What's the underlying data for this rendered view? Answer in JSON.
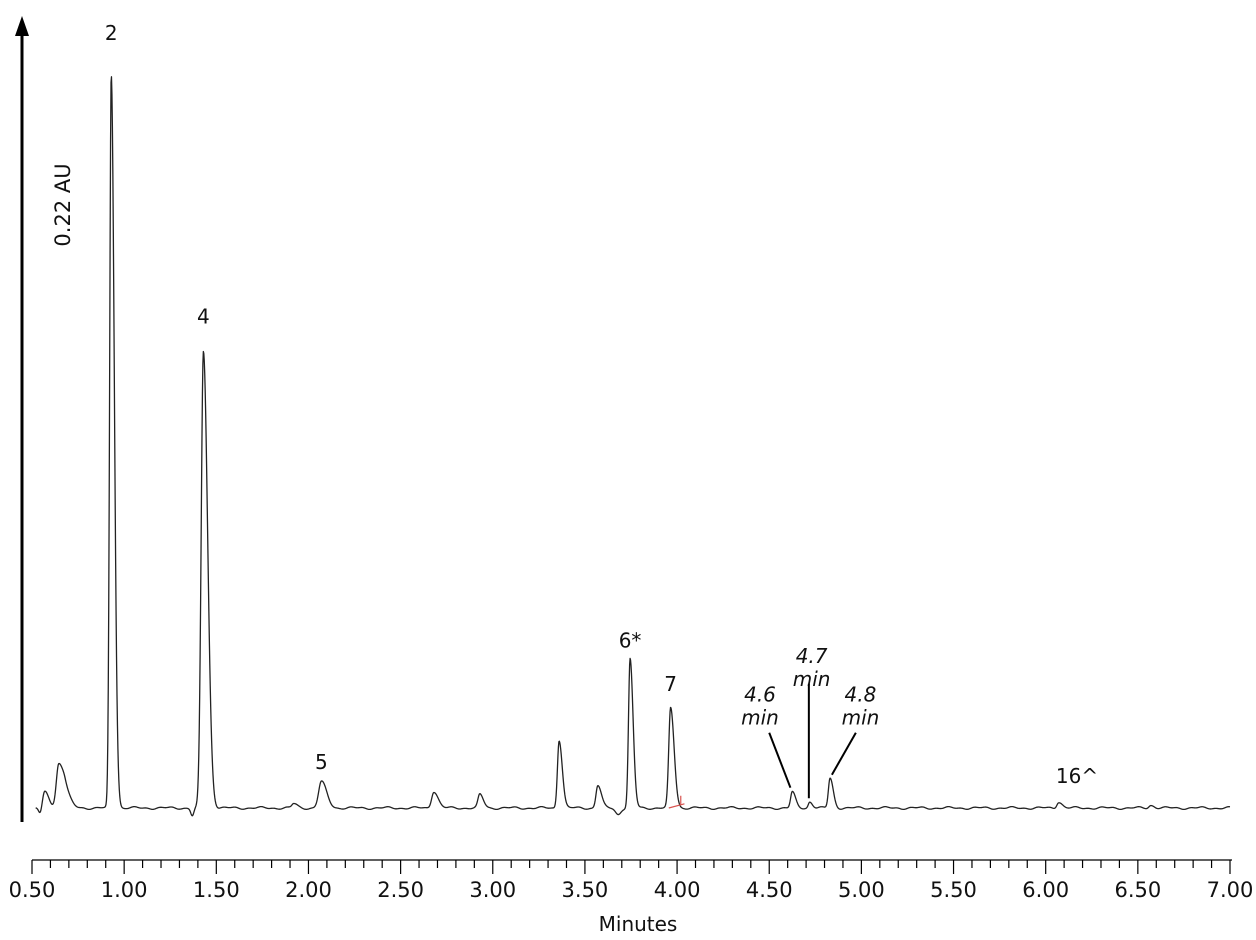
{
  "chart_data": {
    "type": "line",
    "title": "",
    "xlabel": "Minutes",
    "ylabel": "0.22 AU",
    "xlim": [
      0.5,
      7.0
    ],
    "ylim": [
      0.0,
      0.22
    ],
    "x_ticks": [
      0.5,
      1.0,
      1.5,
      2.0,
      2.5,
      3.0,
      3.5,
      4.0,
      4.5,
      5.0,
      5.5,
      6.0,
      6.5,
      7.0
    ],
    "x_tick_labels": [
      "0.50",
      "1.00",
      "1.50",
      "2.00",
      "2.50",
      "3.00",
      "3.50",
      "4.00",
      "4.50",
      "5.00",
      "5.50",
      "6.00",
      "6.50",
      "7.00"
    ],
    "grid": false,
    "legend": "none",
    "line_color": "#222222",
    "axis_color": "#000000",
    "integration_color": "#d9534f",
    "baseline": 0.0,
    "series": [
      {
        "peaks": [
          {
            "rt": 0.57,
            "height": 0.0045,
            "width": 0.012
          },
          {
            "rt": 0.645,
            "height": 0.0125,
            "width": 0.013
          },
          {
            "rt": 0.68,
            "height": 0.004,
            "width": 0.015
          },
          {
            "rt": 0.93,
            "height": 0.2095,
            "width": 0.0085
          },
          {
            "rt": 1.43,
            "height": 0.1305,
            "width": 0.012
          },
          {
            "rt": 1.92,
            "height": 0.0012,
            "width": 0.01
          },
          {
            "rt": 2.07,
            "height": 0.0075,
            "width": 0.015
          },
          {
            "rt": 2.68,
            "height": 0.0048,
            "width": 0.012
          },
          {
            "rt": 2.93,
            "height": 0.0038,
            "width": 0.01
          },
          {
            "rt": 3.36,
            "height": 0.0195,
            "width": 0.009
          },
          {
            "rt": 3.57,
            "height": 0.0065,
            "width": 0.01
          },
          {
            "rt": 3.745,
            "height": 0.0425,
            "width": 0.0085
          },
          {
            "rt": 3.965,
            "height": 0.0285,
            "width": 0.01
          },
          {
            "rt": 4.625,
            "height": 0.0045,
            "width": 0.009
          },
          {
            "rt": 4.72,
            "height": 0.0018,
            "width": 0.008
          },
          {
            "rt": 4.83,
            "height": 0.0085,
            "width": 0.009
          },
          {
            "rt": 6.07,
            "height": 0.0018,
            "width": 0.01
          },
          {
            "rt": 6.57,
            "height": 0.0008,
            "width": 0.01
          }
        ]
      }
    ],
    "annotations": [
      {
        "text": "2",
        "x": 0.93,
        "y": 0.2195,
        "style": "normal"
      },
      {
        "text": "4",
        "x": 1.43,
        "y": 0.1385,
        "style": "normal"
      },
      {
        "text": "5",
        "x": 2.07,
        "y": 0.0112,
        "style": "normal"
      },
      {
        "text": "6*",
        "x": 3.745,
        "y": 0.0458,
        "style": "normal"
      },
      {
        "text": "7",
        "x": 3.965,
        "y": 0.0335,
        "style": "normal"
      },
      {
        "text": "16^",
        "x": 6.17,
        "y": 0.0072,
        "style": "normal"
      }
    ],
    "callouts": [
      {
        "lines": [
          "4.6",
          "min"
        ],
        "x": 4.45,
        "y": 0.0305,
        "pointer_from": [
          4.5,
          0.0215
        ],
        "pointer_to": [
          4.615,
          0.0058
        ]
      },
      {
        "lines": [
          "4.7",
          "min"
        ],
        "x": 4.73,
        "y": 0.0415,
        "pointer_from": [
          4.715,
          0.0355
        ],
        "pointer_to": [
          4.715,
          0.0028
        ]
      },
      {
        "lines": [
          "4.8",
          "min"
        ],
        "x": 4.995,
        "y": 0.0305,
        "pointer_from": [
          4.97,
          0.0215
        ],
        "pointer_to": [
          4.84,
          0.0095
        ]
      }
    ]
  }
}
